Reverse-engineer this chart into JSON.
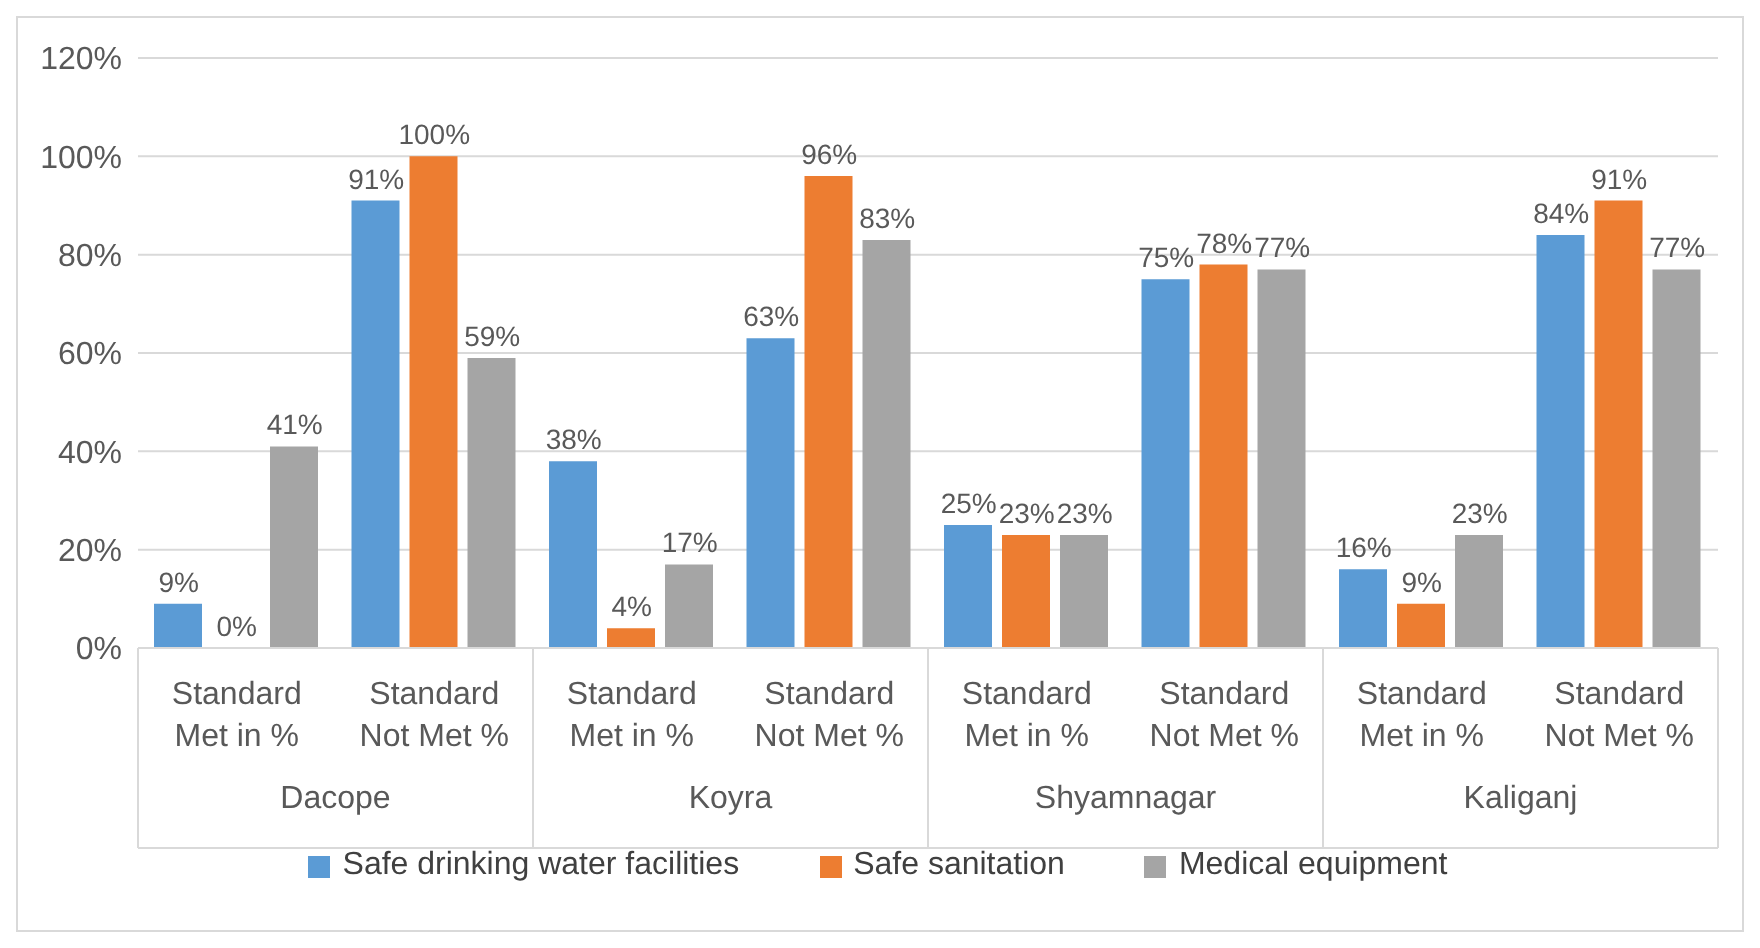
{
  "chart_data": {
    "type": "bar",
    "categories": [
      "Standard Met in %",
      "Standard Not Met %",
      "Standard Met in %",
      "Standard Not Met %",
      "Standard Met in %",
      "Standard Not Met %",
      "Standard Met in %",
      "Standard Not Met %"
    ],
    "annotations": [
      "Dacope",
      "Koyra",
      "Shyamnagar",
      "Kaliganj"
    ],
    "series": [
      {
        "name": "Safe drinking water facilities",
        "color": "#5b9bd5",
        "values": [
          9,
          91,
          38,
          63,
          25,
          75,
          16,
          84
        ],
        "value_labels": [
          "9%",
          "91%",
          "38%",
          "63%",
          "25%",
          "75%",
          "16%",
          "84%"
        ]
      },
      {
        "name": "Safe sanitation",
        "color": "#ed7d31",
        "values": [
          0,
          100,
          4,
          96,
          23,
          78,
          9,
          91
        ],
        "value_labels": [
          "0%",
          "100%",
          "4%",
          "96%",
          "23%",
          "78%",
          "9%",
          "91%"
        ]
      },
      {
        "name": "Medical equipment",
        "color": "#a5a5a5",
        "values": [
          41,
          59,
          17,
          83,
          23,
          77,
          23,
          77
        ],
        "value_labels": [
          "41%",
          "59%",
          "17%",
          "83%",
          "23%",
          "77%",
          "23%",
          "77%"
        ]
      }
    ],
    "ylim": [
      0,
      120
    ],
    "yticks": [
      {
        "value": 0,
        "label": "0%"
      },
      {
        "value": 20,
        "label": "20%"
      },
      {
        "value": 40,
        "label": "40%"
      },
      {
        "value": 60,
        "label": "60%"
      },
      {
        "value": 80,
        "label": "80%"
      },
      {
        "value": 100,
        "label": "100%"
      },
      {
        "value": 120,
        "label": "120%"
      }
    ],
    "grid": "y",
    "legend": "bottom"
  }
}
